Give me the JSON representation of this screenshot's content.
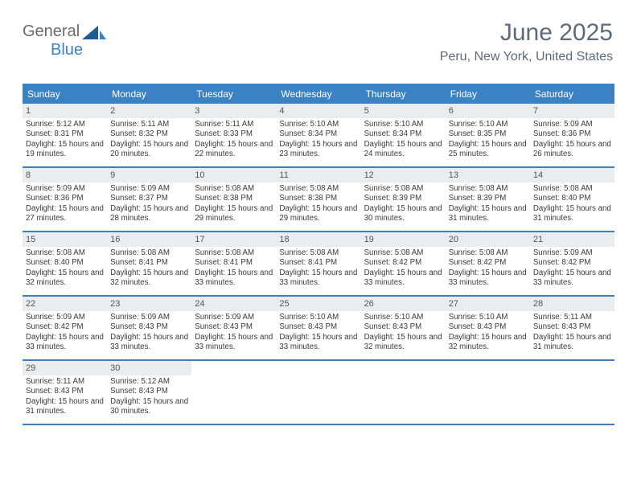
{
  "brand": {
    "word1": "General",
    "word2": "Blue"
  },
  "header": {
    "title": "June 2025",
    "location": "Peru, New York, United States"
  },
  "colors": {
    "accent": "#3b82c4",
    "header_text": "#5d6b78",
    "daynum_bg": "#e9edf0"
  },
  "dow": [
    "Sunday",
    "Monday",
    "Tuesday",
    "Wednesday",
    "Thursday",
    "Friday",
    "Saturday"
  ],
  "days": [
    {
      "n": "1",
      "sr": "5:12 AM",
      "ss": "8:31 PM",
      "dl": "15 hours and 19 minutes."
    },
    {
      "n": "2",
      "sr": "5:11 AM",
      "ss": "8:32 PM",
      "dl": "15 hours and 20 minutes."
    },
    {
      "n": "3",
      "sr": "5:11 AM",
      "ss": "8:33 PM",
      "dl": "15 hours and 22 minutes."
    },
    {
      "n": "4",
      "sr": "5:10 AM",
      "ss": "8:34 PM",
      "dl": "15 hours and 23 minutes."
    },
    {
      "n": "5",
      "sr": "5:10 AM",
      "ss": "8:34 PM",
      "dl": "15 hours and 24 minutes."
    },
    {
      "n": "6",
      "sr": "5:10 AM",
      "ss": "8:35 PM",
      "dl": "15 hours and 25 minutes."
    },
    {
      "n": "7",
      "sr": "5:09 AM",
      "ss": "8:36 PM",
      "dl": "15 hours and 26 minutes."
    },
    {
      "n": "8",
      "sr": "5:09 AM",
      "ss": "8:36 PM",
      "dl": "15 hours and 27 minutes."
    },
    {
      "n": "9",
      "sr": "5:09 AM",
      "ss": "8:37 PM",
      "dl": "15 hours and 28 minutes."
    },
    {
      "n": "10",
      "sr": "5:08 AM",
      "ss": "8:38 PM",
      "dl": "15 hours and 29 minutes."
    },
    {
      "n": "11",
      "sr": "5:08 AM",
      "ss": "8:38 PM",
      "dl": "15 hours and 29 minutes."
    },
    {
      "n": "12",
      "sr": "5:08 AM",
      "ss": "8:39 PM",
      "dl": "15 hours and 30 minutes."
    },
    {
      "n": "13",
      "sr": "5:08 AM",
      "ss": "8:39 PM",
      "dl": "15 hours and 31 minutes."
    },
    {
      "n": "14",
      "sr": "5:08 AM",
      "ss": "8:40 PM",
      "dl": "15 hours and 31 minutes."
    },
    {
      "n": "15",
      "sr": "5:08 AM",
      "ss": "8:40 PM",
      "dl": "15 hours and 32 minutes."
    },
    {
      "n": "16",
      "sr": "5:08 AM",
      "ss": "8:41 PM",
      "dl": "15 hours and 32 minutes."
    },
    {
      "n": "17",
      "sr": "5:08 AM",
      "ss": "8:41 PM",
      "dl": "15 hours and 33 minutes."
    },
    {
      "n": "18",
      "sr": "5:08 AM",
      "ss": "8:41 PM",
      "dl": "15 hours and 33 minutes."
    },
    {
      "n": "19",
      "sr": "5:08 AM",
      "ss": "8:42 PM",
      "dl": "15 hours and 33 minutes."
    },
    {
      "n": "20",
      "sr": "5:08 AM",
      "ss": "8:42 PM",
      "dl": "15 hours and 33 minutes."
    },
    {
      "n": "21",
      "sr": "5:09 AM",
      "ss": "8:42 PM",
      "dl": "15 hours and 33 minutes."
    },
    {
      "n": "22",
      "sr": "5:09 AM",
      "ss": "8:42 PM",
      "dl": "15 hours and 33 minutes."
    },
    {
      "n": "23",
      "sr": "5:09 AM",
      "ss": "8:43 PM",
      "dl": "15 hours and 33 minutes."
    },
    {
      "n": "24",
      "sr": "5:09 AM",
      "ss": "8:43 PM",
      "dl": "15 hours and 33 minutes."
    },
    {
      "n": "25",
      "sr": "5:10 AM",
      "ss": "8:43 PM",
      "dl": "15 hours and 33 minutes."
    },
    {
      "n": "26",
      "sr": "5:10 AM",
      "ss": "8:43 PM",
      "dl": "15 hours and 32 minutes."
    },
    {
      "n": "27",
      "sr": "5:10 AM",
      "ss": "8:43 PM",
      "dl": "15 hours and 32 minutes."
    },
    {
      "n": "28",
      "sr": "5:11 AM",
      "ss": "8:43 PM",
      "dl": "15 hours and 31 minutes."
    },
    {
      "n": "29",
      "sr": "5:11 AM",
      "ss": "8:43 PM",
      "dl": "15 hours and 31 minutes."
    },
    {
      "n": "30",
      "sr": "5:12 AM",
      "ss": "8:43 PM",
      "dl": "15 hours and 30 minutes."
    }
  ],
  "labels": {
    "sunrise": "Sunrise: ",
    "sunset": "Sunset: ",
    "daylight": "Daylight: "
  }
}
